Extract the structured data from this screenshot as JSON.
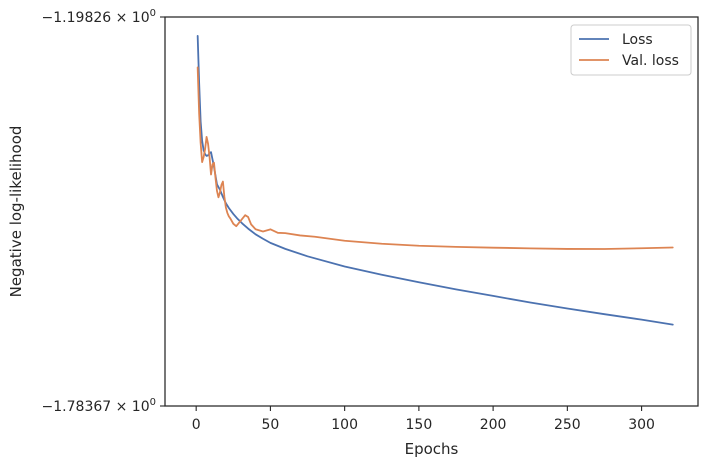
{
  "chart_data": {
    "type": "line",
    "title": "",
    "xlabel": "Epochs",
    "ylabel": "Negative log-likelihood",
    "xlim": [
      -21,
      338
    ],
    "ylim": [
      -1.78367,
      -1.19826
    ],
    "x_ticks": [
      0,
      50,
      100,
      150,
      200,
      250,
      300
    ],
    "x_tick_labels": [
      "0",
      "50",
      "100",
      "150",
      "200",
      "250",
      "300"
    ],
    "y_tick_labels": [
      {
        "value": -1.19826,
        "mantissa": "−1.19826",
        "times": " × 10",
        "exp": "0"
      },
      {
        "value": -1.78367,
        "mantissa": "−1.78367",
        "times": " × 10",
        "exp": "0"
      }
    ],
    "grid": false,
    "legend_position": "top-right",
    "series": [
      {
        "name": "Loss",
        "color": "#4c72b0",
        "x": [
          1,
          2,
          3,
          4,
          5,
          6,
          7,
          8,
          9,
          10,
          12,
          14,
          16,
          18,
          20,
          22,
          25,
          28,
          31,
          35,
          40,
          45,
          50,
          60,
          75,
          100,
          125,
          150,
          175,
          200,
          225,
          250,
          275,
          300,
          321
        ],
        "y": [
          -1.2268,
          -1.2976,
          -1.3554,
          -1.3844,
          -1.3987,
          -1.4048,
          -1.4073,
          -1.4065,
          -1.4032,
          -1.4017,
          -1.4236,
          -1.45,
          -1.4581,
          -1.469,
          -1.4785,
          -1.4857,
          -1.4946,
          -1.5023,
          -1.5089,
          -1.5167,
          -1.5253,
          -1.532,
          -1.5382,
          -1.5472,
          -1.5584,
          -1.5737,
          -1.5862,
          -1.5975,
          -1.6081,
          -1.618,
          -1.6279,
          -1.637,
          -1.6455,
          -1.6537,
          -1.6612
        ]
      },
      {
        "name": "Val. loss",
        "color": "#dd8452",
        "x": [
          1,
          2,
          3,
          4,
          5,
          6,
          7,
          8,
          9,
          10,
          11,
          12,
          13,
          14,
          15,
          16,
          17,
          18,
          19,
          20,
          21,
          22,
          23,
          25,
          27,
          30,
          33,
          35,
          37,
          40,
          45,
          50,
          55,
          60,
          70,
          80,
          90,
          100,
          125,
          150,
          175,
          200,
          225,
          250,
          275,
          300,
          321
        ],
        "y": [
          -1.2742,
          -1.3436,
          -1.3876,
          -1.4166,
          -1.4092,
          -1.397,
          -1.3787,
          -1.389,
          -1.4087,
          -1.4353,
          -1.4199,
          -1.4176,
          -1.4402,
          -1.4598,
          -1.4696,
          -1.4623,
          -1.4511,
          -1.4459,
          -1.4689,
          -1.485,
          -1.4931,
          -1.4983,
          -1.5014,
          -1.5094,
          -1.513,
          -1.5048,
          -1.4965,
          -1.4993,
          -1.5103,
          -1.5177,
          -1.5211,
          -1.5178,
          -1.523,
          -1.5235,
          -1.527,
          -1.529,
          -1.532,
          -1.535,
          -1.5395,
          -1.5425,
          -1.5442,
          -1.5454,
          -1.5464,
          -1.5473,
          -1.5474,
          -1.5463,
          -1.5451
        ]
      }
    ]
  }
}
